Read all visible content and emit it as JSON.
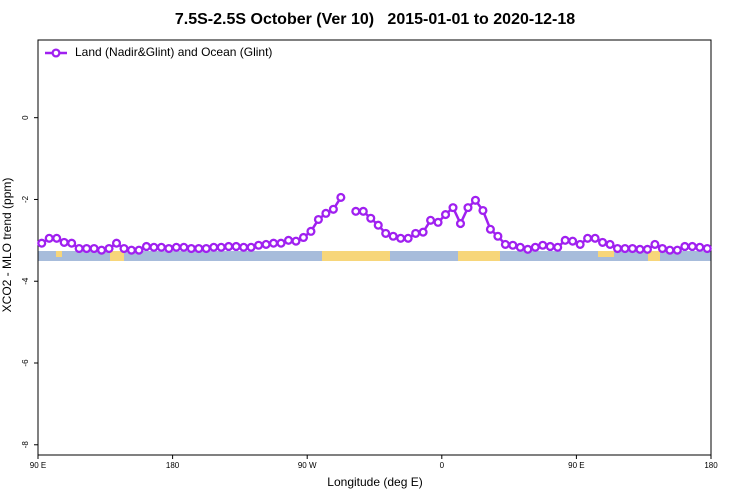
{
  "chart_data": {
    "type": "line",
    "title": "7.5S-2.5S October (Ver 10)   2015-01-01 to 2020-12-18",
    "x_label": "Longitude (deg E)",
    "y_label": "XCO2 - MLO trend (ppm)",
    "xlim": [
      90,
      540
    ],
    "ylim": [
      -8.25,
      1.9
    ],
    "xticks": [
      {
        "value": 90,
        "label": "90 E"
      },
      180,
      {
        "value": 270,
        "label": "90 W"
      },
      {
        "value": 360,
        "label": "0"
      },
      {
        "value": 450,
        "label": "90 E"
      },
      {
        "value": 540,
        "label": "180"
      }
    ],
    "yticks": [
      0,
      -2,
      -4,
      -6,
      -8
    ],
    "legend": "top-left",
    "x": [
      92.5,
      97.5,
      102.5,
      107.5,
      112.5,
      117.5,
      122.5,
      127.5,
      132.5,
      137.5,
      142.5,
      147.5,
      152.5,
      157.5,
      162.5,
      167.5,
      172.5,
      177.5,
      182.5,
      187.5,
      192.5,
      197.5,
      202.5,
      207.5,
      212.5,
      217.5,
      222.5,
      227.5,
      232.5,
      237.5,
      242.5,
      247.5,
      252.5,
      257.5,
      262.5,
      267.5,
      272.5,
      277.5,
      282.5,
      287.5,
      292.5,
      297.5,
      302.5,
      307.5,
      312.5,
      317.5,
      322.5,
      327.5,
      332.5,
      337.5,
      342.5,
      347.5,
      352.5,
      357.5,
      362.5,
      367.5,
      372.5,
      377.5,
      382.5,
      387.5,
      392.5,
      397.5,
      402.5,
      407.5,
      412.5,
      417.5,
      422.5,
      427.5,
      432.5,
      437.5,
      442.5,
      447.5,
      452.5,
      457.5,
      462.5,
      467.5,
      472.5,
      477.5,
      482.5,
      487.5,
      492.5,
      497.5,
      502.5,
      507.5,
      512.5,
      517.5,
      522.5,
      527.5,
      532.5,
      537.5
    ],
    "series": [
      {
        "name": "Land (Nadir&Glint) and Ocean (Glint)",
        "color": "#a020f0",
        "values": [
          -3.07,
          -2.95,
          -2.95,
          -3.05,
          -3.07,
          -3.2,
          -3.2,
          -3.2,
          -3.24,
          -3.2,
          -3.07,
          -3.2,
          -3.24,
          -3.24,
          -3.15,
          -3.17,
          -3.17,
          -3.2,
          -3.17,
          -3.17,
          -3.2,
          -3.2,
          -3.2,
          -3.17,
          -3.17,
          -3.15,
          -3.15,
          -3.17,
          -3.17,
          -3.12,
          -3.1,
          -3.07,
          -3.07,
          -3.0,
          -3.02,
          -2.93,
          -2.78,
          -2.49,
          -2.34,
          -2.24,
          -1.95,
          null,
          -2.29,
          -2.29,
          -2.46,
          -2.63,
          -2.83,
          -2.9,
          -2.95,
          -2.95,
          -2.83,
          -2.8,
          -2.51,
          -2.56,
          -2.37,
          -2.2,
          -2.59,
          -2.2,
          -2.02,
          -2.27,
          -2.73,
          -2.9,
          -3.1,
          -3.12,
          -3.17,
          -3.22,
          -3.17,
          -3.12,
          -3.15,
          -3.17,
          -3.0,
          -3.02,
          -3.1,
          -2.95,
          -2.95,
          -3.05,
          -3.1,
          -3.2,
          -3.2,
          -3.2,
          -3.22,
          -3.22,
          -3.1,
          -3.2,
          -3.24,
          -3.24,
          -3.15,
          -3.15,
          -3.17,
          -3.2
        ]
      }
    ]
  }
}
